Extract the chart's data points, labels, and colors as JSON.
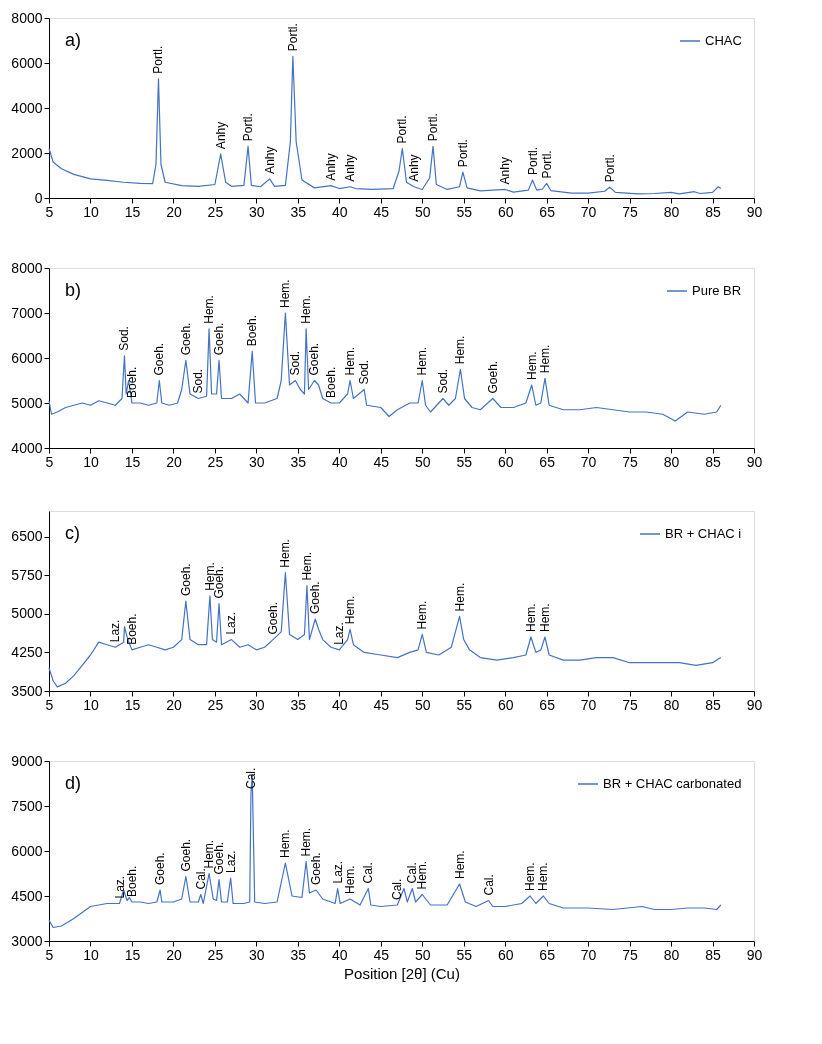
{
  "chart_data": [
    {
      "type": "line",
      "legend": "top right",
      "grid": false,
      "xlim": [
        5,
        90
      ],
      "xticks": [
        5,
        10,
        15,
        20,
        25,
        30,
        35,
        40,
        45,
        50,
        55,
        60,
        65,
        70,
        75,
        80,
        85,
        90
      ],
      "ylim": [
        0,
        8000
      ],
      "yticks": [
        0,
        2000,
        4000,
        6000,
        8000
      ],
      "series": [
        {
          "name": "CHAC",
          "color": "#4472c4",
          "x": [
            5,
            5.5,
            6.5,
            8,
            10,
            12,
            14,
            16,
            17.5,
            17.9,
            18.2,
            18.5,
            19,
            21,
            23,
            25,
            25.7,
            26.3,
            27,
            28.5,
            29,
            29.4,
            30.5,
            31.6,
            32.2,
            33.5,
            34.1,
            34.4,
            34.8,
            35.5,
            37,
            39,
            40,
            41.3,
            42,
            44,
            46.5,
            47.2,
            47.6,
            48.1,
            49,
            50,
            50.9,
            51.3,
            51.7,
            53,
            54.5,
            54.9,
            55.4,
            57,
            60,
            61,
            62.8,
            63.3,
            63.8,
            64.5,
            65,
            65.5,
            68,
            70,
            72,
            72.6,
            73.3,
            76,
            78,
            80,
            81,
            82.8,
            83.5,
            85,
            85.7,
            86
          ],
          "values": [
            2200,
            1600,
            1300,
            1050,
            850,
            780,
            700,
            650,
            640,
            1500,
            5300,
            1500,
            700,
            550,
            520,
            600,
            1950,
            700,
            520,
            560,
            2300,
            560,
            500,
            850,
            520,
            560,
            2500,
            6300,
            2500,
            800,
            450,
            550,
            420,
            500,
            420,
            380,
            420,
            1200,
            2200,
            700,
            500,
            380,
            900,
            2300,
            600,
            380,
            500,
            1150,
            450,
            320,
            380,
            260,
            350,
            800,
            350,
            400,
            650,
            330,
            220,
            220,
            300,
            480,
            250,
            180,
            200,
            250,
            180,
            280,
            200,
            250,
            500,
            420
          ]
        }
      ],
      "annotations": [
        "a)",
        {
          "text": "Portl.",
          "x": 18.2,
          "y": 5300
        },
        {
          "text": "Anhy",
          "x": 25.7,
          "y": 1950
        },
        {
          "text": "Portl.",
          "x": 29,
          "y": 2300
        },
        {
          "text": "Anhy",
          "x": 31.6,
          "y": 850
        },
        {
          "text": "Portl.",
          "x": 34.4,
          "y": 6300
        },
        {
          "text": "Anhy",
          "x": 39,
          "y": 550
        },
        {
          "text": "Anhy",
          "x": 41.3,
          "y": 500
        },
        {
          "text": "Portl.",
          "x": 47.6,
          "y": 2200
        },
        {
          "text": "Anhy",
          "x": 49,
          "y": 500
        },
        {
          "text": "Portl.",
          "x": 51.3,
          "y": 2300
        },
        {
          "text": "Portl.",
          "x": 54.9,
          "y": 1150
        },
        {
          "text": "Anhy",
          "x": 60,
          "y": 380
        },
        {
          "text": "Portl.",
          "x": 63.3,
          "y": 800
        },
        {
          "text": "Portl.",
          "x": 65,
          "y": 650
        },
        {
          "text": "Portl.",
          "x": 72.6,
          "y": 480
        }
      ]
    },
    {
      "type": "line",
      "legend": "top right",
      "grid": false,
      "xlim": [
        5,
        90
      ],
      "xticks": [
        5,
        10,
        15,
        20,
        25,
        30,
        35,
        40,
        45,
        50,
        55,
        60,
        65,
        70,
        75,
        80,
        85,
        90
      ],
      "ylim": [
        4000,
        8000
      ],
      "yticks": [
        4000,
        5000,
        6000,
        7000,
        8000
      ],
      "series": [
        {
          "name": "Pure BR",
          "color": "#4472c4",
          "x": [
            5,
            5.3,
            6,
            7,
            8,
            9,
            10,
            11,
            12,
            13,
            13.8,
            14.1,
            14.3,
            14.6,
            15,
            16,
            17,
            18,
            18.3,
            18.6,
            19.5,
            20.5,
            21,
            21.5,
            22,
            23,
            24,
            24.3,
            24.6,
            25.2,
            25.5,
            25.8,
            27,
            28,
            29,
            29.5,
            29.9,
            31,
            32.5,
            33,
            33.5,
            34,
            34.7,
            35.3,
            35.8,
            36,
            36.3,
            37,
            37.5,
            38,
            39,
            40,
            41,
            41.3,
            41.7,
            43,
            43.3,
            45,
            46,
            47,
            48.5,
            49.5,
            50,
            50.4,
            51,
            52.5,
            53.2,
            54,
            54.6,
            55.1,
            56,
            57,
            58.5,
            59.5,
            61,
            62.5,
            63.2,
            63.7,
            64.3,
            64.8,
            65.3,
            67,
            69,
            71,
            73,
            75,
            77,
            79,
            80.5,
            82,
            84,
            85.5,
            86
          ],
          "values": [
            5050,
            4750,
            4800,
            4900,
            4950,
            5000,
            4950,
            5050,
            5000,
            4950,
            5100,
            6050,
            5200,
            5500,
            5000,
            5000,
            4950,
            5000,
            5500,
            5000,
            4950,
            5000,
            5300,
            5950,
            5200,
            5100,
            5150,
            6650,
            5200,
            5200,
            5950,
            5100,
            5100,
            5200,
            5000,
            6150,
            5000,
            5000,
            5100,
            5500,
            7000,
            5400,
            5500,
            5300,
            5200,
            6650,
            5300,
            5500,
            5400,
            5100,
            5000,
            5000,
            5200,
            5500,
            5100,
            5300,
            4950,
            4900,
            4700,
            4850,
            5000,
            5000,
            5500,
            4950,
            4800,
            5100,
            4950,
            5100,
            5750,
            5100,
            4900,
            4850,
            5100,
            4900,
            4900,
            5000,
            5400,
            4950,
            5000,
            5550,
            4950,
            4850,
            4850,
            4900,
            4850,
            4800,
            4800,
            4750,
            4600,
            4800,
            4750,
            4800,
            4950
          ]
        }
      ],
      "annotations": [
        "b)",
        {
          "text": "Sod.",
          "x": 14.1,
          "y": 6050
        },
        {
          "text": "Boeh.",
          "x": 15,
          "y": 5000
        },
        {
          "text": "Goeh.",
          "x": 18.3,
          "y": 5500
        },
        {
          "text": "Goeh.",
          "x": 21.5,
          "y": 5950
        },
        {
          "text": "Sod.",
          "x": 23,
          "y": 5100
        },
        {
          "text": "Hem.",
          "x": 24.3,
          "y": 6650
        },
        {
          "text": "Goeh.",
          "x": 25.5,
          "y": 5950
        },
        {
          "text": "Boeh.",
          "x": 29.5,
          "y": 6150
        },
        {
          "text": "Hem.",
          "x": 33.5,
          "y": 7000
        },
        {
          "text": "Sod.",
          "x": 34.7,
          "y": 5500
        },
        {
          "text": "Hem.",
          "x": 36,
          "y": 6650
        },
        {
          "text": "Goeh.",
          "x": 37,
          "y": 5500
        },
        {
          "text": "Boeh.",
          "x": 39,
          "y": 5000
        },
        {
          "text": "Hem.",
          "x": 41.3,
          "y": 5500
        },
        {
          "text": "Sod.",
          "x": 43,
          "y": 5300
        },
        {
          "text": "Hem.",
          "x": 50,
          "y": 5500
        },
        {
          "text": "Sod.",
          "x": 52.5,
          "y": 5100
        },
        {
          "text": "Hem.",
          "x": 54.6,
          "y": 5750
        },
        {
          "text": "Goeh.",
          "x": 58.5,
          "y": 5100
        },
        {
          "text": "Hem.",
          "x": 63.2,
          "y": 5400
        },
        {
          "text": "Hem.",
          "x": 64.8,
          "y": 5550
        }
      ]
    },
    {
      "type": "line",
      "legend": "top right",
      "grid": false,
      "xlim": [
        5,
        90
      ],
      "xticks": [
        5,
        10,
        15,
        20,
        25,
        30,
        35,
        40,
        45,
        50,
        55,
        60,
        65,
        70,
        75,
        80,
        85,
        90
      ],
      "ylim": [
        3500,
        7000
      ],
      "yticks": [
        3500,
        4250,
        5000,
        5750,
        6500
      ],
      "series": [
        {
          "name": "BR + CHAC i",
          "color": "#4472c4",
          "x": [
            5,
            5.5,
            6,
            7,
            8,
            9,
            10,
            11,
            12,
            13,
            14,
            14.1,
            14.5,
            15,
            16,
            17,
            18,
            19,
            20,
            21,
            21.5,
            22,
            23,
            24,
            24.4,
            24.7,
            25.2,
            25.5,
            25.8,
            27,
            28,
            29,
            30,
            31,
            32,
            33,
            33.5,
            34,
            35,
            35.8,
            36.1,
            36.4,
            37.1,
            37.5,
            38,
            39,
            40,
            41,
            41.3,
            41.7,
            43,
            45,
            47,
            48.5,
            49.5,
            50,
            50.5,
            52,
            53.5,
            54.5,
            55,
            55.7,
            57,
            59,
            61,
            62.5,
            63.1,
            63.7,
            64.3,
            64.8,
            65.3,
            67,
            69,
            71,
            73,
            75,
            77,
            79,
            81,
            83,
            85,
            86
          ],
          "values": [
            3950,
            3700,
            3580,
            3650,
            3800,
            4000,
            4200,
            4450,
            4400,
            4350,
            4450,
            4750,
            4500,
            4300,
            4350,
            4400,
            4350,
            4300,
            4350,
            4500,
            5250,
            4500,
            4400,
            4400,
            5350,
            4500,
            4450,
            5200,
            4400,
            4500,
            4350,
            4400,
            4300,
            4350,
            4500,
            4650,
            5800,
            4600,
            4500,
            4600,
            5550,
            4500,
            4900,
            4700,
            4500,
            4350,
            4300,
            4500,
            4700,
            4400,
            4250,
            4200,
            4150,
            4250,
            4300,
            4600,
            4250,
            4200,
            4350,
            4950,
            4500,
            4300,
            4150,
            4100,
            4150,
            4200,
            4550,
            4250,
            4300,
            4550,
            4200,
            4100,
            4100,
            4150,
            4150,
            4050,
            4050,
            4050,
            4050,
            4000,
            4050,
            4150
          ]
        }
      ],
      "annotations": [
        "c)",
        {
          "text": "Laz.",
          "x": 13,
          "y": 4350
        },
        {
          "text": "Boeh.",
          "x": 15,
          "y": 4300
        },
        {
          "text": "Goeh.",
          "x": 21.5,
          "y": 5250
        },
        {
          "text": "Hem.",
          "x": 24.4,
          "y": 5350
        },
        {
          "text": "Goeh.",
          "x": 25.5,
          "y": 5200
        },
        {
          "text": "Laz.",
          "x": 27,
          "y": 4500
        },
        {
          "text": "Goeh.",
          "x": 32,
          "y": 4500
        },
        {
          "text": "Hem.",
          "x": 33.5,
          "y": 5800
        },
        {
          "text": "Hem.",
          "x": 36.1,
          "y": 5550
        },
        {
          "text": "Goeh.",
          "x": 37.1,
          "y": 4900
        },
        {
          "text": "Laz.",
          "x": 40,
          "y": 4300
        },
        {
          "text": "Hem.",
          "x": 41.3,
          "y": 4700
        },
        {
          "text": "Hem.",
          "x": 50,
          "y": 4600
        },
        {
          "text": "Hem.",
          "x": 54.5,
          "y": 4950
        },
        {
          "text": "Hem.",
          "x": 63.1,
          "y": 4550
        },
        {
          "text": "Hem.",
          "x": 64.8,
          "y": 4550
        }
      ]
    },
    {
      "type": "line",
      "legend": "top right",
      "grid": false,
      "xlabel": "Position [2θ] (Cu)",
      "xlim": [
        5,
        90
      ],
      "xticks": [
        5,
        10,
        15,
        20,
        25,
        30,
        35,
        40,
        45,
        50,
        55,
        60,
        65,
        70,
        75,
        80,
        85,
        90
      ],
      "ylim": [
        3000,
        9000
      ],
      "yticks": [
        3000,
        4500,
        6000,
        7500,
        9000
      ],
      "series": [
        {
          "name": "BR + CHAC carbonated",
          "color": "#4472c4",
          "x": [
            5,
            5.5,
            6.5,
            8,
            9,
            10,
            12,
            13.5,
            14,
            14.4,
            14.7,
            15,
            16,
            17,
            18,
            18.4,
            18.6,
            20,
            21,
            21.5,
            22,
            23,
            23.3,
            23.6,
            24.3,
            24.8,
            25.2,
            25.5,
            25.8,
            26.5,
            26.9,
            27.2,
            28.5,
            29.2,
            29.35,
            29.5,
            29.8,
            31,
            32.5,
            33.5,
            34.3,
            35.5,
            36,
            36.4,
            37.2,
            38,
            39.5,
            39.8,
            40.1,
            41.3,
            42.5,
            43.5,
            43.8,
            45,
            47,
            47.8,
            48.2,
            48.8,
            49.2,
            50,
            51,
            53,
            54.5,
            55.2,
            56.5,
            58,
            58.5,
            60,
            62,
            63,
            63.7,
            64.6,
            65.3,
            67,
            70,
            73,
            76.5,
            78,
            80,
            82,
            84,
            85.5,
            86
          ],
          "values": [
            3700,
            3450,
            3500,
            3750,
            3950,
            4150,
            4250,
            4250,
            4700,
            4350,
            4450,
            4300,
            4300,
            4250,
            4300,
            4700,
            4300,
            4300,
            4400,
            5150,
            4300,
            4300,
            4550,
            4250,
            5250,
            4400,
            4350,
            5050,
            4300,
            4300,
            5100,
            4250,
            4250,
            4300,
            7900,
            8550,
            4300,
            4250,
            4300,
            5600,
            4500,
            4450,
            5650,
            4600,
            4700,
            4400,
            4250,
            4750,
            4250,
            4400,
            4200,
            4750,
            4200,
            4150,
            4200,
            4750,
            4300,
            4750,
            4300,
            4550,
            4200,
            4200,
            4900,
            4300,
            4150,
            4350,
            4150,
            4150,
            4250,
            4500,
            4250,
            4500,
            4250,
            4100,
            4100,
            4050,
            4150,
            4050,
            4050,
            4100,
            4100,
            4050,
            4200
          ]
        }
      ],
      "annotations": [
        "d)",
        {
          "text": "Laz.",
          "x": 13.5,
          "y": 4250
        },
        {
          "text": "Boeh.",
          "x": 15,
          "y": 4300
        },
        {
          "text": "Goeh.",
          "x": 18.4,
          "y": 4700
        },
        {
          "text": "Goeh.",
          "x": 21.5,
          "y": 5150
        },
        {
          "text": "Cal.",
          "x": 23.3,
          "y": 4550
        },
        {
          "text": "Hem.",
          "x": 24.3,
          "y": 5250
        },
        {
          "text": "Goeh.",
          "x": 25.5,
          "y": 5050
        },
        {
          "text": "Laz.",
          "x": 26.9,
          "y": 5100
        },
        {
          "text": "Cal.",
          "x": 29.35,
          "y": 7900
        },
        {
          "text": "Hem.",
          "x": 33.5,
          "y": 5600
        },
        {
          "text": "Hem.",
          "x": 36,
          "y": 5650
        },
        {
          "text": "Goeh.",
          "x": 37.2,
          "y": 4700
        },
        {
          "text": "Laz.",
          "x": 39.8,
          "y": 4750
        },
        {
          "text": "Hem.",
          "x": 41.3,
          "y": 4400
        },
        {
          "text": "Cal.",
          "x": 43.5,
          "y": 4750
        },
        {
          "text": "Cal.",
          "x": 47,
          "y": 4200
        },
        {
          "text": "Cal.",
          "x": 48.8,
          "y": 4750
        },
        {
          "text": "Hem.",
          "x": 50,
          "y": 4550
        },
        {
          "text": "Hem.",
          "x": 54.5,
          "y": 4900
        },
        {
          "text": "Cal.",
          "x": 58,
          "y": 4350
        },
        {
          "text": "Hem.",
          "x": 63,
          "y": 4500
        },
        {
          "text": "Hem.",
          "x": 64.6,
          "y": 4500
        }
      ]
    }
  ]
}
